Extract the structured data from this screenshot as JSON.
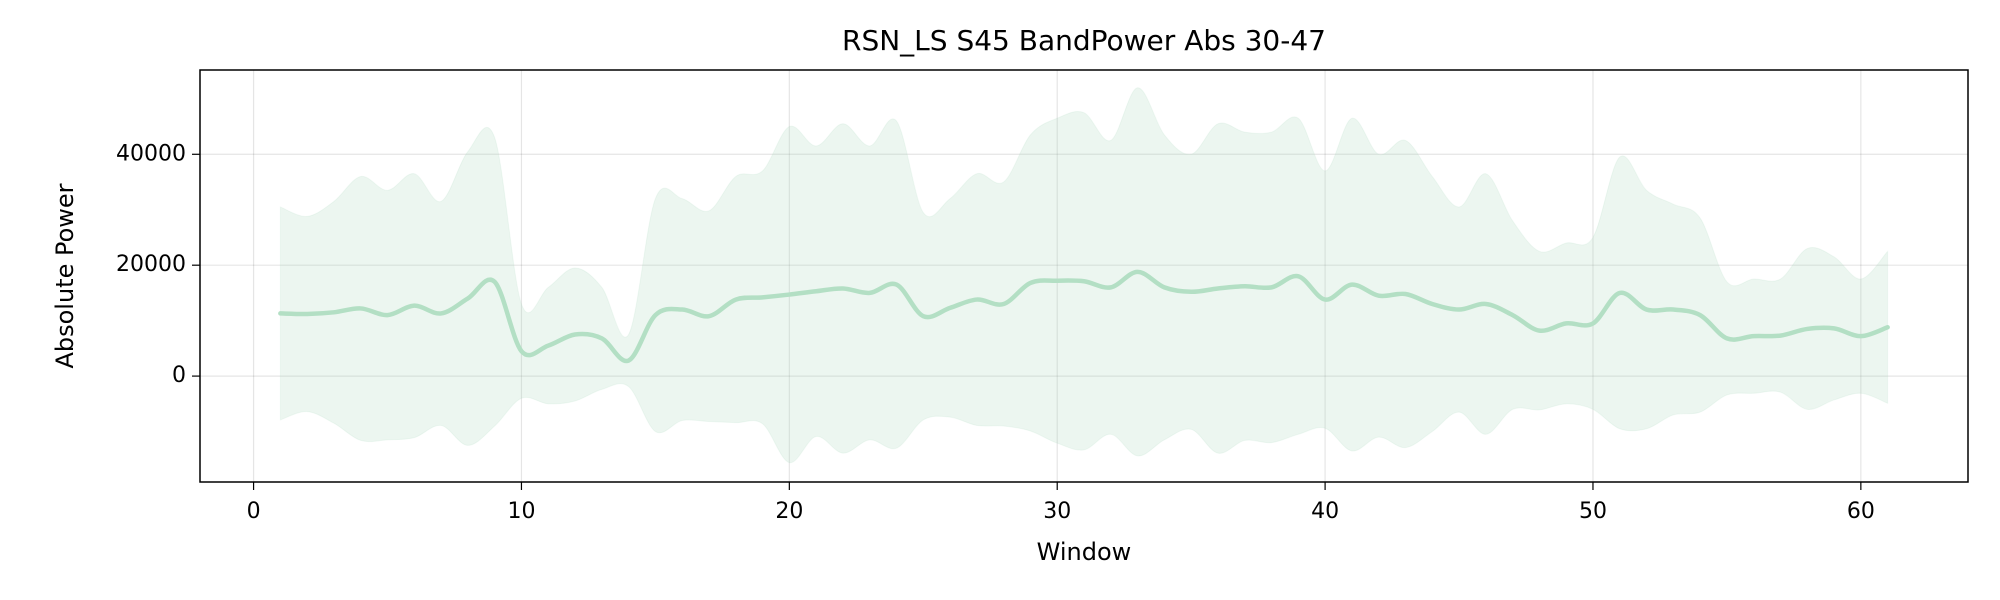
{
  "chart_data": {
    "type": "line",
    "title": "RSN_LS S45 BandPower Abs 30-47",
    "x_label": "Window",
    "y_label": "Absolute Power",
    "x": [
      1,
      2,
      3,
      4,
      5,
      6,
      7,
      8,
      9,
      10,
      11,
      12,
      13,
      14,
      15,
      16,
      17,
      18,
      19,
      20,
      21,
      22,
      23,
      24,
      25,
      26,
      27,
      28,
      29,
      30,
      31,
      32,
      33,
      34,
      35,
      36,
      37,
      38,
      39,
      40,
      41,
      42,
      43,
      44,
      45,
      46,
      47,
      48,
      49,
      50,
      51,
      52,
      53,
      54,
      55,
      56,
      57,
      58,
      59,
      60,
      61
    ],
    "values": [
      11300,
      11200,
      11500,
      12200,
      11000,
      12700,
      11300,
      14000,
      17000,
      4500,
      5500,
      7500,
      6800,
      2800,
      11000,
      12000,
      10800,
      13800,
      14200,
      14700,
      15300,
      15800,
      15000,
      16500,
      10800,
      12300,
      13800,
      13000,
      16800,
      17200,
      17100,
      16000,
      18800,
      16000,
      15200,
      15800,
      16200,
      16000,
      18000,
      13800,
      16500,
      14500,
      14800,
      13000,
      12000,
      13000,
      11000,
      8200,
      9500,
      9500,
      15000,
      12000,
      12000,
      11000,
      6800,
      7200,
      7300,
      8500,
      8600,
      7200,
      8800
    ],
    "upper": [
      30500,
      28800,
      31500,
      36000,
      33500,
      36500,
      31500,
      40500,
      43000,
      13000,
      16000,
      19500,
      16000,
      7500,
      32000,
      32000,
      29800,
      36000,
      37000,
      45000,
      41500,
      45500,
      41500,
      46000,
      29500,
      32000,
      36500,
      35000,
      43500,
      46500,
      47500,
      42500,
      52000,
      43500,
      40000,
      45500,
      44000,
      44000,
      46500,
      37000,
      46500,
      40000,
      42500,
      36000,
      30500,
      36500,
      28000,
      22500,
      24000,
      25000,
      39500,
      33500,
      31000,
      28500,
      17000,
      17500,
      17500,
      23000,
      21500,
      17500,
      22500
    ],
    "lower": [
      -7900,
      -6400,
      -8500,
      -11600,
      -11500,
      -11100,
      -8900,
      -12500,
      -9000,
      -4000,
      -5000,
      -4500,
      -2400,
      -1900,
      -10000,
      -8000,
      -8200,
      -8400,
      -8600,
      -15600,
      -10900,
      -13900,
      -11500,
      -13000,
      -7900,
      -7400,
      -8900,
      -9000,
      -9900,
      -12100,
      -13300,
      -10500,
      -14400,
      -11500,
      -9600,
      -13900,
      -11600,
      -12000,
      -10500,
      -9400,
      -13500,
      -11000,
      -12900,
      -10000,
      -6500,
      -10500,
      -6000,
      -6100,
      -5000,
      -6000,
      -9500,
      -9500,
      -7000,
      -6500,
      -3400,
      -3100,
      -2900,
      -6000,
      -4300,
      -3100,
      -4900
    ],
    "color": "#b3dfc4",
    "band_color": "#a8d8b9",
    "xlim": [
      -2,
      64
    ],
    "ylim": [
      -19100,
      55200
    ],
    "xticks": [
      0,
      10,
      20,
      30,
      40,
      50,
      60
    ],
    "yticks": [
      0,
      20000,
      40000
    ],
    "grid": true
  }
}
